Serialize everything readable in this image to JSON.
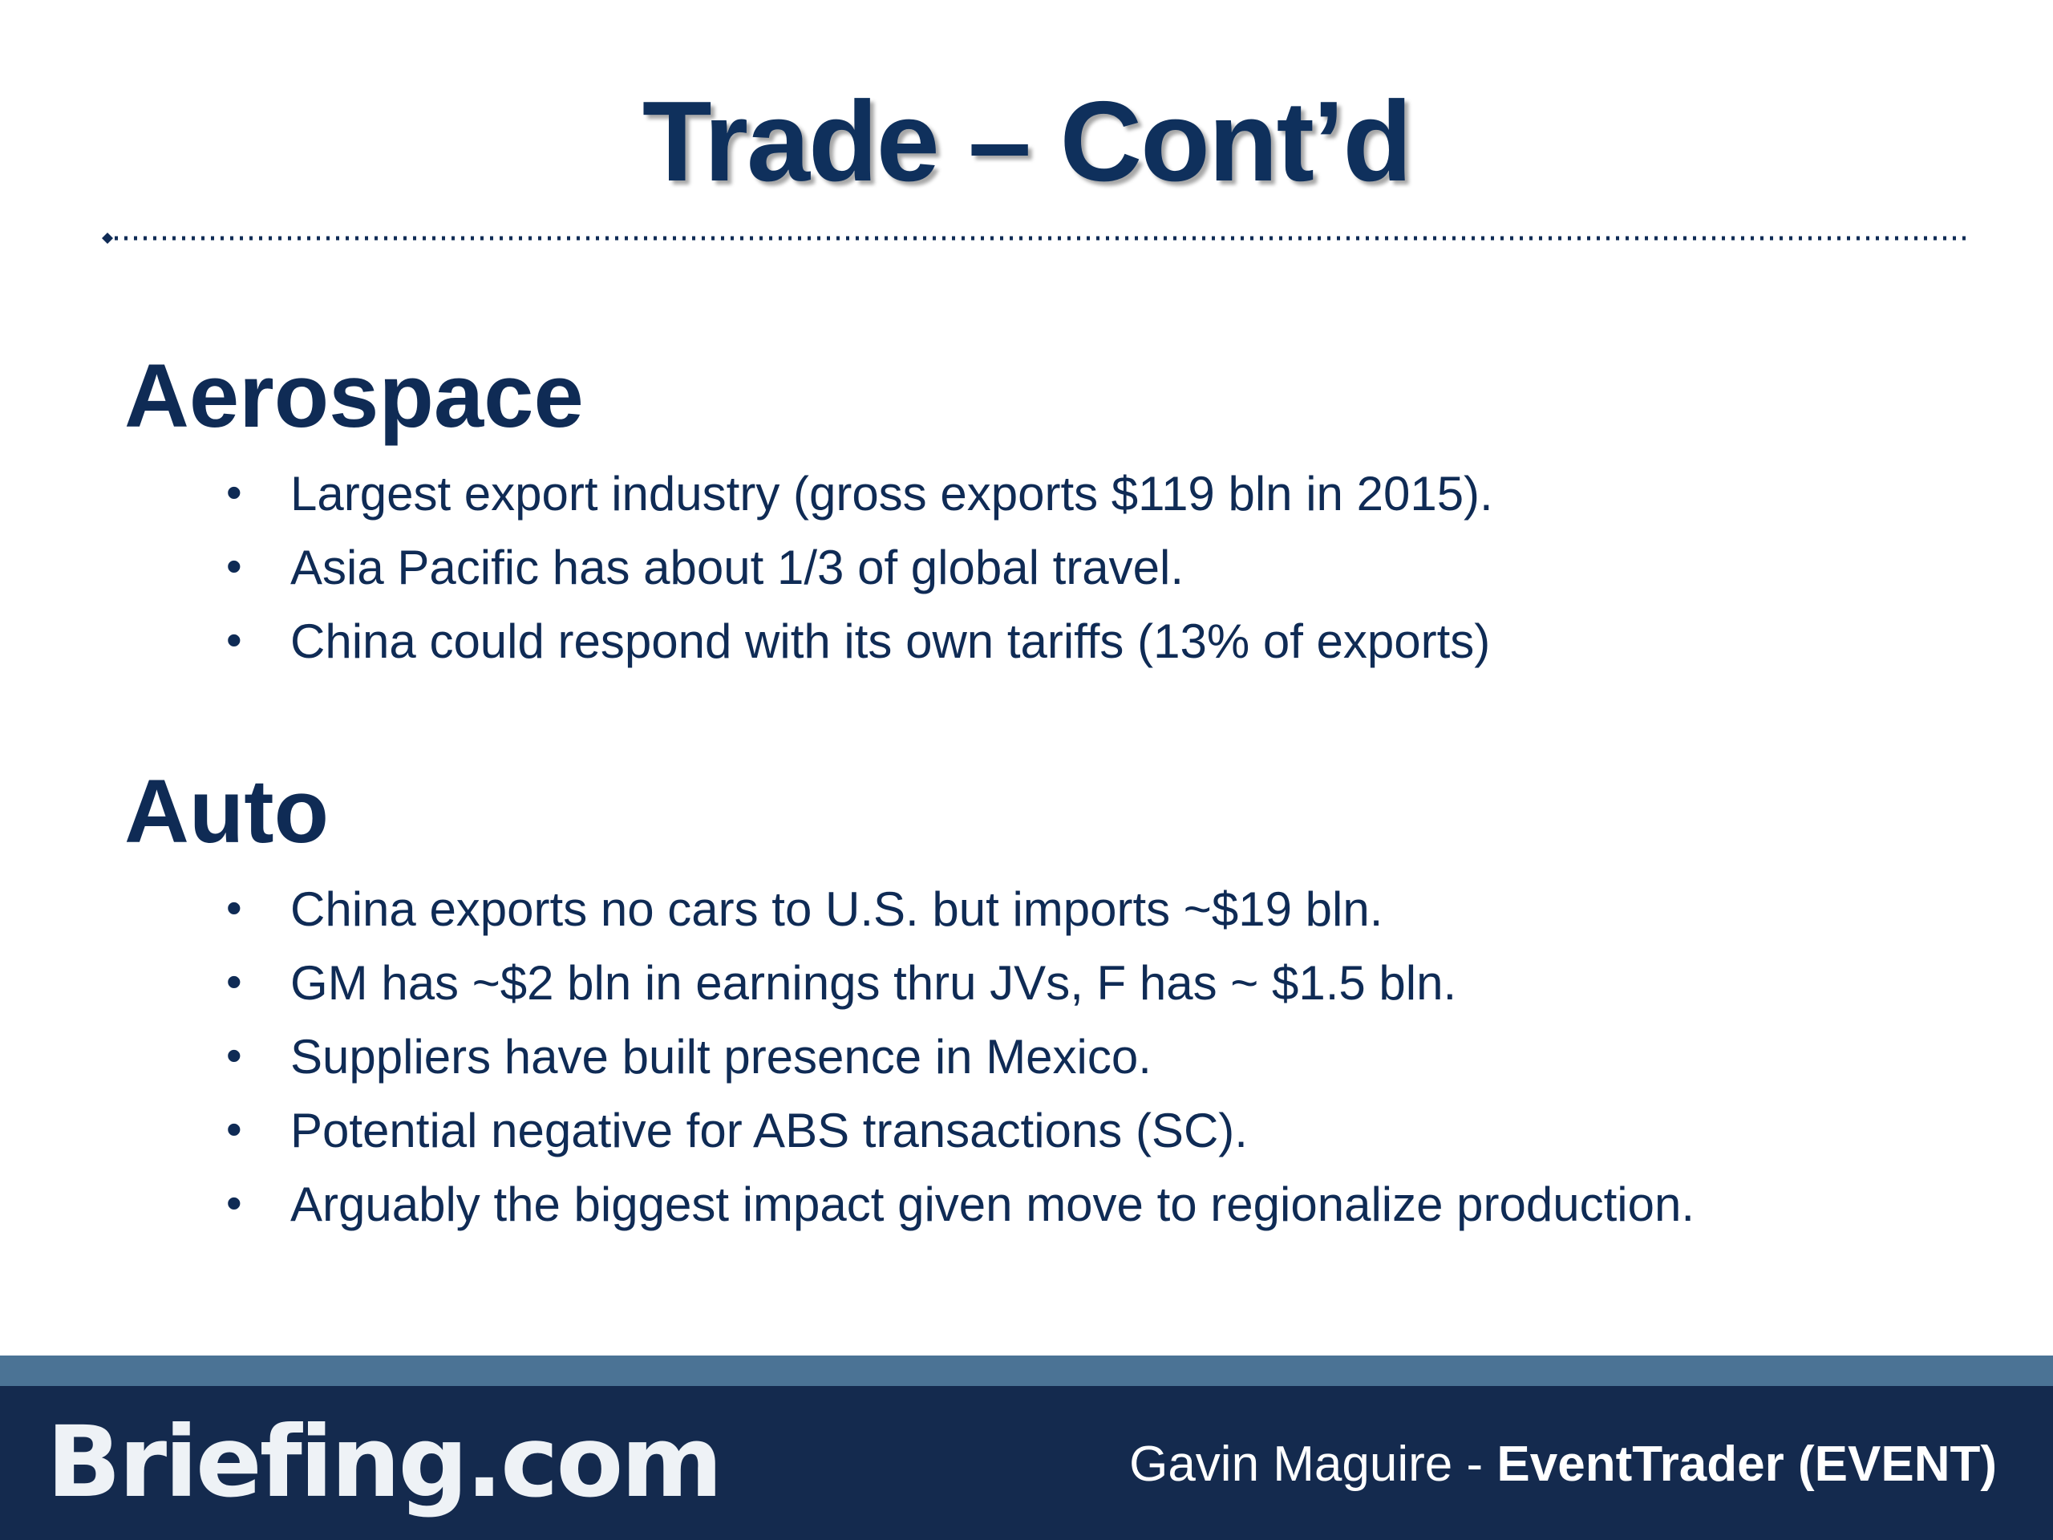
{
  "title": "Trade – Cont’d",
  "sections": [
    {
      "heading": "Aerospace",
      "bullets": [
        "Largest export industry (gross exports $119 bln in 2015).",
        "Asia Pacific has about 1/3 of global travel.",
        "China could respond with its own tariffs (13% of exports)"
      ]
    },
    {
      "heading": "Auto",
      "bullets": [
        "China exports no cars to U.S. but imports ~$19 bln.",
        "GM has ~$2 bln in earnings thru JVs, F has ~ $1.5 bln.",
        "Suppliers have built presence in Mexico.",
        "Potential negative for ABS transactions (SC).",
        "Arguably the biggest impact given move to regionalize production."
      ]
    }
  ],
  "footer": {
    "logo": "Briefing.com",
    "presenter": "Gavin Maguire -",
    "event": "EventTrader (EVENT)"
  }
}
